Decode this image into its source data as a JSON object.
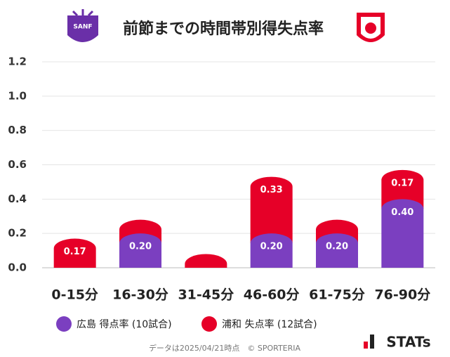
{
  "chart_data": {
    "type": "stacked-bar",
    "title": "前節までの時間帯別得失点率",
    "categories": [
      "0-15分",
      "16-30分",
      "31-45分",
      "46-60分",
      "61-75分",
      "76-90分"
    ],
    "series": [
      {
        "name": "広島 得点率 (10試合)",
        "color": "#7b3fc0",
        "values": [
          0,
          0.2,
          0,
          0.2,
          0.2,
          0.4
        ],
        "value_labels": [
          null,
          "0.20",
          null,
          "0.20",
          "0.20",
          "0.40"
        ]
      },
      {
        "name": "浦和 失点率 (12試合)",
        "color": "#e60028",
        "values": [
          0.17,
          0.08,
          0.08,
          0.33,
          0.08,
          0.17
        ],
        "value_labels": [
          "0.17",
          null,
          null,
          "0.33",
          null,
          "0.17"
        ]
      }
    ],
    "ylim": [
      0,
      1.2
    ],
    "yticks": [
      {
        "value": 0,
        "label": "0.0"
      },
      {
        "value": 0.2,
        "label": "0.2"
      },
      {
        "value": 0.4,
        "label": "0.4"
      },
      {
        "value": 0.6,
        "label": "0.6"
      },
      {
        "value": 0.8,
        "label": "0.8"
      },
      {
        "value": 1.0,
        "label": "1.0"
      },
      {
        "value": 1.2,
        "label": "1.2"
      }
    ],
    "grid": true,
    "footer": "データは2025/04/21時点　© SPORTERIA",
    "brand": "STATs"
  }
}
